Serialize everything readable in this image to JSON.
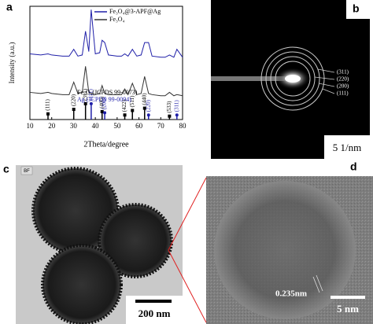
{
  "chart_data": {
    "type": "line",
    "x_label": "2Theta/degree",
    "y_label": "Intensity (a.u.)",
    "x": [
      10,
      15,
      18.3,
      20,
      25,
      28,
      30.1,
      32,
      34,
      35.5,
      37,
      38.1,
      40,
      42,
      43.1,
      44.3,
      46,
      50,
      52,
      53.5,
      55,
      57.0,
      59,
      61,
      62.6,
      64.4,
      66,
      70,
      72,
      74.0,
      76,
      77.4,
      80
    ],
    "series": [
      {
        "name": "Fe₃O₄@3-APF@Ag",
        "color": "#1f1fa8",
        "values": [
          58,
          57,
          58,
          57,
          56,
          56,
          62,
          56,
          57,
          78,
          60,
          97,
          58,
          59,
          70,
          68,
          57,
          56,
          56,
          58,
          56,
          62,
          56,
          57,
          68,
          68,
          56,
          55,
          55,
          57,
          55,
          62,
          55
        ]
      },
      {
        "name": "Fe₃O₄",
        "color": "#333333",
        "values": [
          24,
          23,
          24,
          23,
          22,
          22,
          33,
          23,
          24,
          47,
          24,
          23,
          22,
          23,
          30,
          23,
          22,
          22,
          22,
          27,
          22,
          32,
          22,
          23,
          38,
          23,
          22,
          21,
          21,
          24,
          21,
          22,
          21
        ]
      }
    ],
    "references": [
      {
        "name": "Fe₃O₄(JCPDS 99-0073)",
        "color": "#000000",
        "x": [
          18.3,
          30.1,
          35.5,
          43.1,
          53.5,
          57.0,
          62.6,
          74.0
        ],
        "values": [
          5,
          9,
          14,
          7,
          4,
          8,
          10,
          3
        ],
        "labels": [
          "(111)",
          "(220)",
          "(311)",
          "(400)",
          "(422)",
          "(511)",
          "(440)",
          "(533)"
        ]
      },
      {
        "name": "Ag (JCPDS 99-0094)",
        "color": "#1f1fa8",
        "x": [
          38.1,
          44.3,
          64.4,
          77.4
        ],
        "values": [
          14,
          6,
          4,
          4
        ],
        "labels": [
          "(111)",
          "(200)",
          "(220)",
          "(311)"
        ]
      }
    ],
    "xlim": [
      10,
      80
    ],
    "xticks": [
      10,
      20,
      30,
      40,
      50,
      60,
      70,
      80
    ],
    "ylim": [
      0,
      100
    ]
  },
  "panel_labels": [
    "a",
    "b",
    "c",
    "d"
  ],
  "saed": {
    "rings": [
      "(311)",
      "(220)",
      "(200)",
      "(111)"
    ],
    "scale_bar": "5 1/nm"
  },
  "tem": {
    "mode": "BF",
    "scale_bar": "200 nm"
  },
  "hrtem": {
    "lattice_spacing": "0.235nm",
    "scale_bar": "5 nm"
  }
}
